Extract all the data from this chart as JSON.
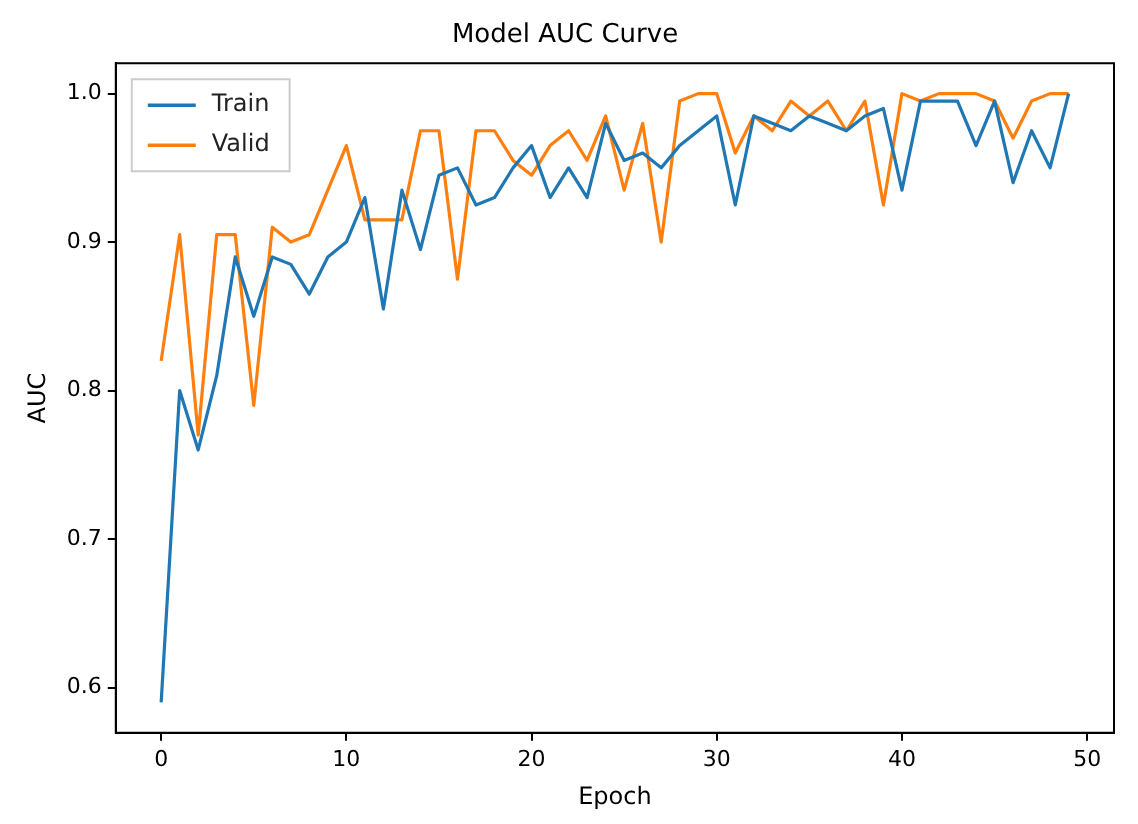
{
  "chart_data": {
    "type": "line",
    "title": "Model AUC Curve",
    "xlabel": "Epoch",
    "ylabel": "AUC",
    "x": [
      0,
      1,
      2,
      3,
      4,
      5,
      6,
      7,
      8,
      9,
      10,
      11,
      12,
      13,
      14,
      15,
      16,
      17,
      18,
      19,
      20,
      21,
      22,
      23,
      24,
      25,
      26,
      27,
      28,
      29,
      30,
      31,
      32,
      33,
      34,
      35,
      36,
      37,
      38,
      39,
      40,
      41,
      42,
      43,
      44,
      45,
      46,
      47,
      48,
      49
    ],
    "series": [
      {
        "name": "Train",
        "color": "#1f77b4",
        "values": [
          0.59,
          0.8,
          0.76,
          0.81,
          0.89,
          0.85,
          0.89,
          0.885,
          0.865,
          0.89,
          0.9,
          0.93,
          0.855,
          0.935,
          0.895,
          0.945,
          0.95,
          0.925,
          0.93,
          0.95,
          0.965,
          0.93,
          0.95,
          0.93,
          0.98,
          0.955,
          0.96,
          0.95,
          0.965,
          0.975,
          0.985,
          0.925,
          0.985,
          0.98,
          0.975,
          0.985,
          0.98,
          0.975,
          0.985,
          0.99,
          0.935,
          0.995,
          0.995,
          0.995,
          0.965,
          0.995,
          0.94,
          0.975,
          0.95,
          1.0
        ]
      },
      {
        "name": "Valid",
        "color": "#ff7f0e",
        "values": [
          0.82,
          0.905,
          0.77,
          0.905,
          0.905,
          0.79,
          0.91,
          0.9,
          0.905,
          0.935,
          0.965,
          0.915,
          0.915,
          0.915,
          0.975,
          0.975,
          0.875,
          0.975,
          0.975,
          0.955,
          0.945,
          0.965,
          0.975,
          0.955,
          0.985,
          0.935,
          0.98,
          0.9,
          0.995,
          1.0,
          1.0,
          0.96,
          0.985,
          0.975,
          0.995,
          0.985,
          0.995,
          0.975,
          0.995,
          0.925,
          1.0,
          0.995,
          1.0,
          1.0,
          1.0,
          0.995,
          0.97,
          0.995,
          1.0,
          1.0
        ]
      }
    ],
    "xlim": [
      -2.45,
      51.45
    ],
    "xticks": [
      0,
      10,
      20,
      30,
      40,
      50
    ],
    "ylim": [
      0.5695,
      1.0205
    ],
    "yticks": [
      0.6,
      0.7,
      0.8,
      0.9,
      {
        "value": 1,
        "label": "1.0"
      }
    ],
    "legend": "top left",
    "grid": false,
    "marker": "none",
    "line_style": "solid"
  }
}
